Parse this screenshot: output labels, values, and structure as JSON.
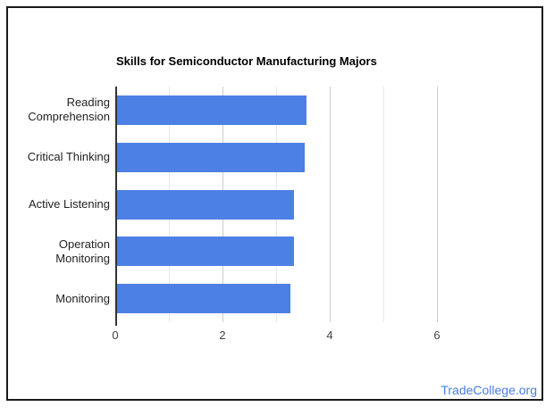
{
  "chart_data": {
    "type": "bar",
    "orientation": "horizontal",
    "title": "Skills for Semiconductor Manufacturing Majors",
    "categories": [
      "Reading Comprehension",
      "Critical Thinking",
      "Active Listening",
      "Operation Monitoring",
      "Monitoring"
    ],
    "values": [
      3.53,
      3.5,
      3.3,
      3.3,
      3.23
    ],
    "xlabel": "",
    "ylabel": "",
    "xlim": [
      0,
      7
    ],
    "x_ticks": [
      0,
      2,
      4,
      6
    ],
    "minor_gridlines": [
      1,
      3,
      5
    ],
    "grid": true,
    "legend": "none",
    "bar_color": "#4d80e4",
    "major_grid_color": "#cccccc",
    "minor_grid_color": "#e8e8e8",
    "axis_color": "#333333",
    "tick_label_color": "#444444",
    "category_label_color": "#222222",
    "title_color": "#000000"
  },
  "watermark": {
    "label": "TradeCollege.org",
    "color": "#4a7de2"
  },
  "frame": {
    "border_color": "#1a1a1a"
  }
}
